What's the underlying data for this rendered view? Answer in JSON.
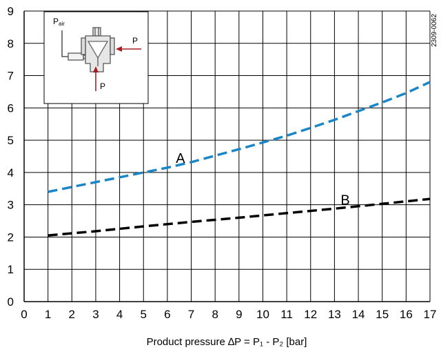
{
  "chart_data": {
    "type": "line",
    "x_ticks": [
      "0",
      "1",
      "2",
      "3",
      "4",
      "5",
      "6",
      "7",
      "8",
      "9",
      "10",
      "11",
      "12",
      "13",
      "14",
      "15",
      "16",
      "17"
    ],
    "y_ticks": [
      "0",
      "1",
      "2",
      "3",
      "4",
      "5",
      "6",
      "7",
      "8",
      "9"
    ],
    "xlim": [
      0,
      17
    ],
    "ylim": [
      0,
      9
    ],
    "grid": true,
    "xlabel": "Product pressure ∆P = P₁ - P₂ [bar]",
    "ylabel": "",
    "series": [
      {
        "name": "A",
        "color": "#1a86c8",
        "line_style": "dashed",
        "x": [
          1,
          2,
          3,
          4,
          5,
          6,
          7,
          8,
          9,
          10,
          11,
          12,
          13,
          14,
          15,
          16,
          17
        ],
        "y": [
          3.4,
          3.55,
          3.7,
          3.85,
          4.0,
          4.15,
          4.32,
          4.52,
          4.72,
          4.93,
          5.14,
          5.38,
          5.63,
          5.9,
          6.17,
          6.46,
          6.8
        ]
      },
      {
        "name": "B",
        "color": "#000000",
        "line_style": "dashed",
        "x": [
          1,
          3,
          5,
          7,
          9,
          11,
          13,
          15,
          17
        ],
        "y": [
          2.05,
          2.18,
          2.33,
          2.47,
          2.6,
          2.74,
          2.88,
          3.03,
          3.18
        ]
      }
    ],
    "labels": [
      {
        "text": "A",
        "x": 6.55,
        "y": 4.3
      },
      {
        "text": "B",
        "x": 13.45,
        "y": 3.0
      }
    ]
  },
  "doc_id": "2309-0062",
  "inset": {
    "p_air_main": "P",
    "p_air_sub": "air",
    "p_right": "P",
    "p_bottom": "P",
    "arrow_color": "#a41e22"
  }
}
